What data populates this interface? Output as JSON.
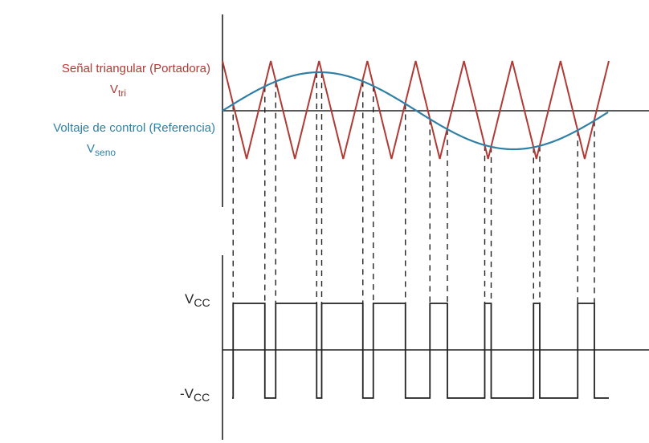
{
  "labels": {
    "carrier_title": "Señal triangular (Portadora)",
    "carrier_symbol_base": "V",
    "carrier_symbol_sub": "tri",
    "reference_title": "Voltaje de control (Referencia)",
    "reference_symbol_base": "V",
    "reference_symbol_sub": "seno",
    "vcc_base": "V",
    "vcc_sub": "CC",
    "neg_vcc_base": "-V",
    "neg_vcc_sub": "CC"
  },
  "colors": {
    "carrier": "#b03a36",
    "reference": "#2f7fa6",
    "axes": "#222222",
    "pwm": "#222222"
  },
  "chart_data": {
    "type": "line",
    "description_free": true,
    "carrier": {
      "shape": "triangle",
      "periods": 8,
      "amplitude": 1.0
    },
    "reference": {
      "shape": "sine",
      "cycles": 1,
      "amplitude": 0.8
    },
    "output": {
      "shape": "pwm",
      "levels": [
        "VCC",
        "-VCC"
      ]
    }
  }
}
